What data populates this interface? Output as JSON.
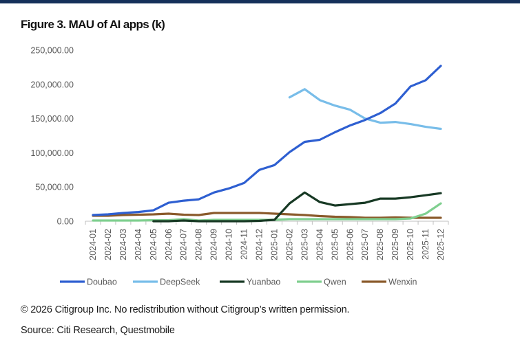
{
  "figure": {
    "title": "Figure 3. MAU of AI apps (k)",
    "copyright": "© 2026 Citigroup Inc. No redistribution without Citigroup’s written permission.",
    "source": "Source: Citi Research, Questmobile"
  },
  "chart_data": {
    "type": "line",
    "title": "Figure 3. MAU of AI apps (k)",
    "xlabel": "",
    "ylabel": "",
    "ylim": [
      0,
      250000
    ],
    "y_ticks": [
      0,
      50000,
      100000,
      150000,
      200000,
      250000
    ],
    "y_tick_labels": [
      "0.00",
      "50,000.00",
      "100,000.00",
      "150,000.00",
      "200,000.00",
      "250,000.00"
    ],
    "grid": false,
    "legend_position": "bottom",
    "categories": [
      "2024-01",
      "2024-02",
      "2024-03",
      "2024-04",
      "2024-05",
      "2024-06",
      "2024-07",
      "2024-08",
      "2024-09",
      "2024-10",
      "2024-11",
      "2024-12",
      "2025-01",
      "2025-02",
      "2025-03",
      "2025-04",
      "2025-05",
      "2025-06",
      "2025-07",
      "2025-08",
      "2025-09",
      "2025-10",
      "2025-11",
      "2025-12"
    ],
    "series": [
      {
        "name": "Doubao",
        "color": "#2e5fd1",
        "values": [
          9000,
          10000,
          12000,
          13500,
          16000,
          27000,
          30000,
          32000,
          42000,
          48000,
          56000,
          75000,
          82000,
          101000,
          116000,
          119000,
          130000,
          140000,
          148000,
          158000,
          172000,
          197000,
          206000,
          227000
        ]
      },
      {
        "name": "DeepSeek",
        "color": "#78bde9",
        "values": [
          null,
          null,
          null,
          null,
          null,
          null,
          null,
          null,
          null,
          null,
          null,
          null,
          null,
          181000,
          193000,
          177000,
          169000,
          163000,
          150000,
          144000,
          145000,
          142000,
          138000,
          135000
        ]
      },
      {
        "name": "Yuanbao",
        "color": "#173924",
        "values": [
          null,
          null,
          null,
          null,
          0,
          0,
          1000,
          0,
          0,
          0,
          0,
          500,
          2000,
          26000,
          42000,
          28000,
          23000,
          25000,
          27000,
          33000,
          33000,
          35000,
          38000,
          41000
        ]
      },
      {
        "name": "Qwen",
        "color": "#7fcf8f",
        "values": [
          1000,
          1000,
          1000,
          1000,
          1500,
          1500,
          3000,
          1000,
          2000,
          2000,
          2000,
          2000,
          2000,
          3000,
          3000,
          3000,
          3000,
          3000,
          3000,
          3000,
          3000,
          4000,
          11000,
          26000
        ]
      },
      {
        "name": "Wenxin",
        "color": "#8a5a2b",
        "values": [
          8000,
          8000,
          9000,
          9500,
          10000,
          11000,
          9500,
          9000,
          12000,
          12000,
          12000,
          12000,
          11000,
          10000,
          9000,
          7500,
          6500,
          6000,
          5000,
          5000,
          5500,
          5000,
          5000,
          5000
        ]
      }
    ]
  }
}
